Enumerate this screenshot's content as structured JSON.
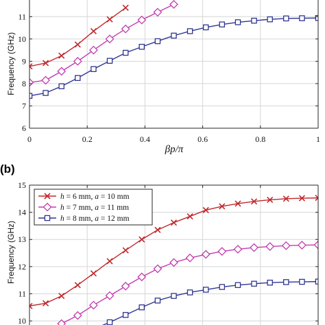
{
  "figure": {
    "panel_b_letter": "(b)"
  },
  "chart_data": [
    {
      "panel": "a",
      "type": "line",
      "ylabel": "Frequency (GHz)",
      "xlabel": "βp/π",
      "xlim": [
        0,
        1
      ],
      "ylim": [
        6,
        11.9
      ],
      "xticks": [
        0,
        0.2,
        0.4,
        0.6,
        0.8,
        1
      ],
      "xtick_labels": [
        "0",
        "0.2",
        "0.4",
        "0.6",
        "0.8",
        "1"
      ],
      "yticks": [
        6,
        7,
        8,
        9,
        10,
        11
      ],
      "ytick_labels": [
        "6",
        "7",
        "8",
        "9",
        "10",
        "11"
      ],
      "grid": true,
      "series": [
        {
          "color": "#c0282c",
          "marker": "x",
          "x": [
            0,
            0.056,
            0.111,
            0.167,
            0.222,
            0.278,
            0.333
          ],
          "y": [
            8.77,
            8.92,
            9.25,
            9.75,
            10.35,
            10.88,
            11.4
          ]
        },
        {
          "color": "#c23cae",
          "marker": "diamond",
          "x": [
            0,
            0.056,
            0.111,
            0.167,
            0.222,
            0.278,
            0.333,
            0.389,
            0.444,
            0.5
          ],
          "y": [
            8.05,
            8.15,
            8.55,
            9.0,
            9.5,
            10.0,
            10.45,
            10.85,
            11.2,
            11.55
          ]
        },
        {
          "color": "#2f3590",
          "marker": "square",
          "x": [
            0,
            0.056,
            0.111,
            0.167,
            0.222,
            0.278,
            0.333,
            0.389,
            0.444,
            0.5,
            0.556,
            0.611,
            0.667,
            0.722,
            0.778,
            0.833,
            0.889,
            0.944,
            1
          ],
          "y": [
            7.45,
            7.58,
            7.88,
            8.25,
            8.65,
            9.02,
            9.38,
            9.65,
            9.9,
            10.15,
            10.35,
            10.52,
            10.65,
            10.75,
            10.82,
            10.88,
            10.92,
            10.93,
            10.94
          ]
        }
      ]
    },
    {
      "panel": "b",
      "type": "line",
      "ylabel": "Frequency (GHz)",
      "xlim": [
        0,
        1
      ],
      "ylim": [
        9.85,
        15
      ],
      "yticks": [
        10,
        11,
        12,
        13,
        14,
        15
      ],
      "ytick_labels": [
        "10",
        "11",
        "12",
        "13",
        "14",
        "15"
      ],
      "grid": true,
      "legend_position": "top-left",
      "series": [
        {
          "name": "h = 6 mm, a = 10 mm",
          "color": "#c0282c",
          "marker": "x",
          "x": [
            0,
            0.056,
            0.111,
            0.167,
            0.222,
            0.278,
            0.333,
            0.389,
            0.444,
            0.5,
            0.556,
            0.611,
            0.667,
            0.722,
            0.778,
            0.833,
            0.889,
            0.944,
            1
          ],
          "y": [
            10.55,
            10.65,
            10.92,
            11.32,
            11.75,
            12.2,
            12.6,
            13.0,
            13.35,
            13.62,
            13.85,
            14.08,
            14.22,
            14.32,
            14.4,
            14.46,
            14.5,
            14.52,
            14.53
          ]
        },
        {
          "name": "h = 7 mm, a = 11 mm",
          "color": "#c23cae",
          "marker": "diamond",
          "x": [
            0.111,
            0.167,
            0.222,
            0.278,
            0.333,
            0.389,
            0.444,
            0.5,
            0.556,
            0.611,
            0.667,
            0.722,
            0.778,
            0.833,
            0.889,
            0.944,
            1
          ],
          "y": [
            9.9,
            10.2,
            10.58,
            10.93,
            11.28,
            11.62,
            11.92,
            12.15,
            12.32,
            12.45,
            12.56,
            12.64,
            12.7,
            12.74,
            12.77,
            12.79,
            12.8
          ]
        },
        {
          "name": "h = 8 mm, a = 12 mm",
          "color": "#2f3590",
          "marker": "square",
          "x": [
            0.222,
            0.278,
            0.333,
            0.389,
            0.444,
            0.5,
            0.556,
            0.611,
            0.667,
            0.722,
            0.778,
            0.833,
            0.889,
            0.944,
            1
          ],
          "y": [
            9.7,
            9.95,
            10.22,
            10.5,
            10.75,
            10.92,
            11.05,
            11.15,
            11.25,
            11.32,
            11.37,
            11.41,
            11.43,
            11.44,
            11.45
          ]
        }
      ],
      "legend": [
        {
          "h_var": "h",
          "h_val": " = 6 mm, ",
          "a_var": "a",
          "a_val": " = 10 mm"
        },
        {
          "h_var": "h",
          "h_val": " = 7 mm, ",
          "a_var": "a",
          "a_val": " = 11 mm"
        },
        {
          "h_var": "h",
          "h_val": " = 8 mm, ",
          "a_var": "a",
          "a_val": " = 12 mm"
        }
      ]
    }
  ]
}
